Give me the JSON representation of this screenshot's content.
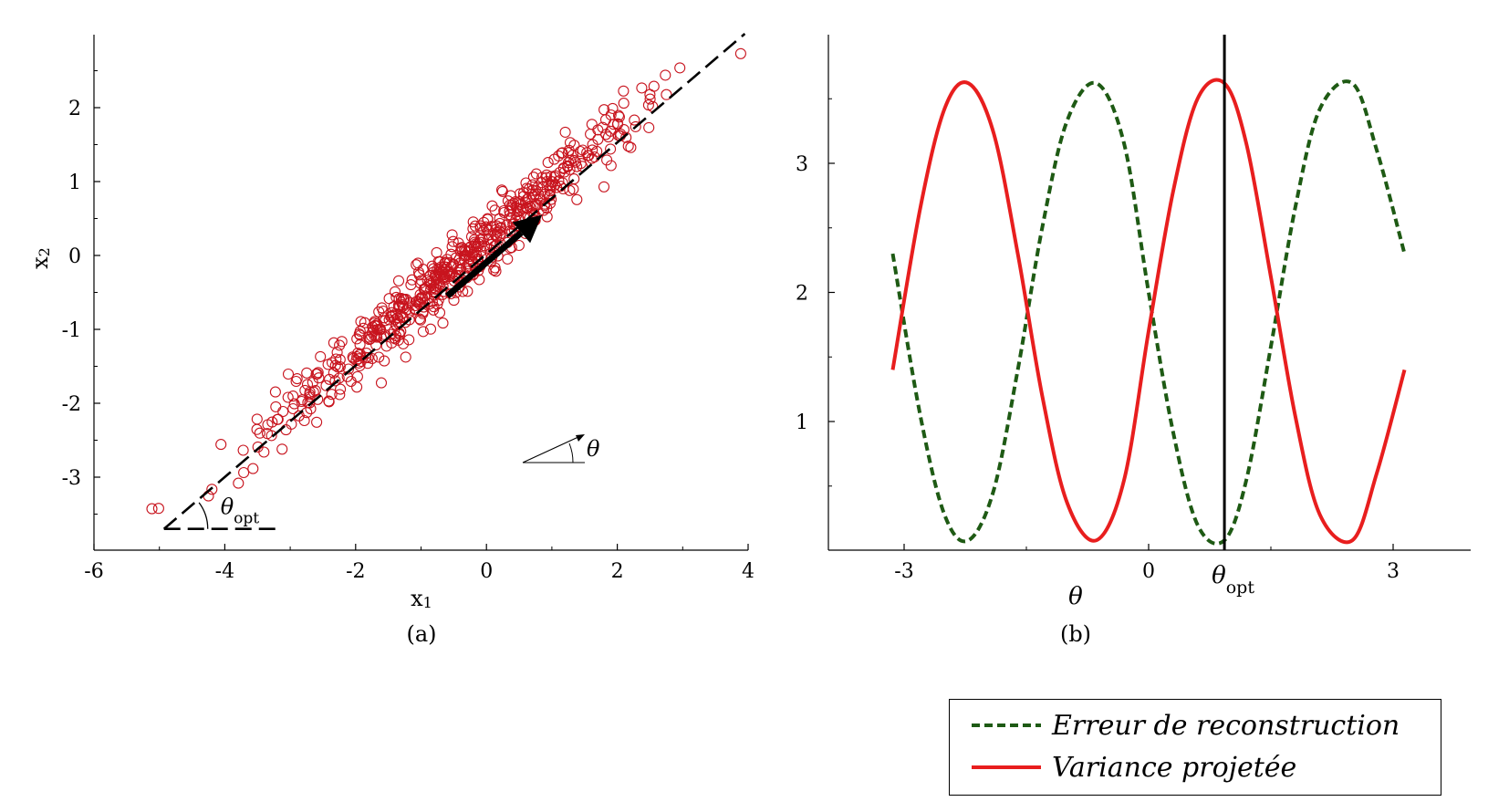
{
  "chart_data": [
    {
      "type": "scatter",
      "panel_label": "(a)",
      "xlabel": "x1",
      "ylabel": "x2",
      "xlim": [
        -6,
        4
      ],
      "ylim": [
        -4,
        3
      ],
      "xticks": [
        -6,
        -4,
        -2,
        0,
        2,
        4
      ],
      "xtick_labels": [
        "-6",
        "-4",
        "-2",
        "0",
        "2",
        "4"
      ],
      "yticks": [
        -3,
        -2,
        -1,
        0,
        1,
        2
      ],
      "ytick_labels": [
        "-3",
        "-2",
        "-1",
        "0",
        "1",
        "2"
      ],
      "grid": false,
      "marker_color": "#c8141e",
      "points_description_count": 600,
      "principal_direction_slope": 0.75,
      "arrow": {
        "from": [
          -0.6,
          -0.55
        ],
        "to": [
          0.85,
          0.55
        ]
      },
      "angle_annotation_opt": "θopt",
      "angle_annotation": "θ"
    },
    {
      "type": "line",
      "panel_label": "(b)",
      "xlabel": "θ",
      "xlim": [
        -3.5,
        4.0
      ],
      "ylim": [
        0,
        4
      ],
      "xticks": [
        -3,
        0,
        3
      ],
      "xtick_labels": [
        "-3",
        "0",
        "3"
      ],
      "yticks": [
        1,
        2,
        3
      ],
      "ytick_labels": [
        "1",
        "2",
        "3"
      ],
      "vline_x": 0.93,
      "vline_label": "θopt",
      "grid": false,
      "series": [
        {
          "name": "Erreur de reconstruction",
          "style": "dashed",
          "color": "#1e5a14",
          "x": [
            -3.14,
            -2.8,
            -2.5,
            -2.21,
            -1.9,
            -1.6,
            -1.3,
            -1.0,
            -0.64,
            -0.3,
            0.0,
            0.3,
            0.6,
            0.93,
            1.2,
            1.5,
            1.8,
            2.1,
            2.5,
            2.8,
            3.14
          ],
          "y": [
            2.3,
            1.04,
            0.27,
            0.08,
            0.47,
            1.42,
            2.52,
            3.33,
            3.62,
            3.15,
            2.0,
            0.92,
            0.2,
            0.08,
            0.55,
            1.58,
            2.66,
            3.42,
            3.62,
            3.1,
            2.3
          ]
        },
        {
          "name": "Variance projetée",
          "style": "solid",
          "color": "#e81e1e",
          "x": [
            -3.14,
            -2.8,
            -2.5,
            -2.21,
            -1.9,
            -1.6,
            -1.3,
            -1.0,
            -0.64,
            -0.3,
            0.0,
            0.3,
            0.6,
            0.93,
            1.2,
            1.5,
            1.8,
            2.1,
            2.5,
            2.8,
            3.14
          ],
          "y": [
            1.4,
            2.66,
            3.43,
            3.62,
            3.23,
            2.28,
            1.18,
            0.37,
            0.08,
            0.55,
            1.7,
            2.78,
            3.5,
            3.62,
            3.15,
            2.12,
            1.04,
            0.28,
            0.08,
            0.6,
            1.4
          ]
        }
      ]
    }
  ],
  "legend": {
    "items": [
      {
        "label": "Erreur de reconstruction",
        "color": "#1e5a14",
        "style": "dashed"
      },
      {
        "label": "Variance projetée",
        "color": "#e81e1e",
        "style": "solid"
      }
    ]
  }
}
